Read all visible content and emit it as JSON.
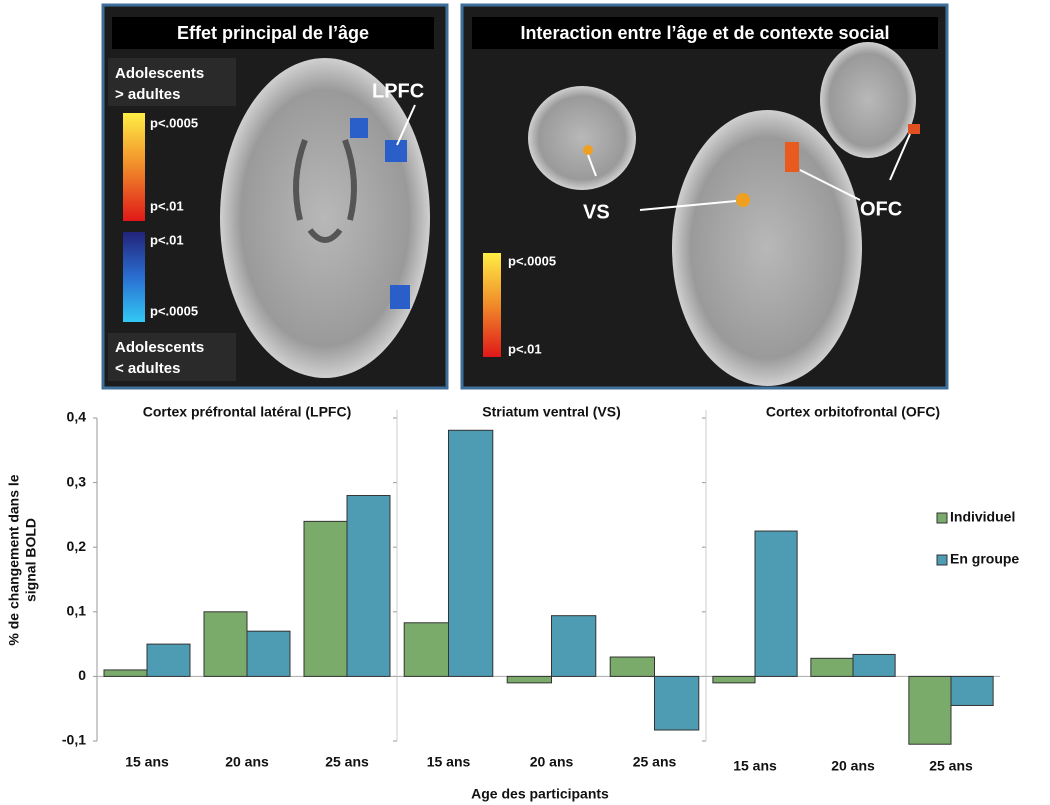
{
  "brain_panels": [
    {
      "title": "Effet principal de l’âge",
      "top_label": [
        "Adolescents",
        "> adultes"
      ],
      "bottom_label": [
        "Adolescents",
        "< adultes"
      ],
      "scale_labels": [
        "p<.0005",
        "p<.01",
        "p<.01",
        "p<.0005"
      ],
      "regions": [
        "LPFC"
      ]
    },
    {
      "title": "Interaction entre l’âge et de contexte social",
      "scale_labels": [
        "p<.0005",
        "p<.01"
      ],
      "regions": [
        "VS",
        "OFC"
      ]
    }
  ],
  "chart_data": {
    "type": "bar",
    "ylabel": [
      "% de changement dans le",
      "signal BOLD"
    ],
    "xlabel": "Age des participants",
    "ylim": [
      -0.1,
      0.4
    ],
    "yticks": [
      {
        "value": 0.4,
        "label": "0,4"
      },
      {
        "value": 0.3,
        "label": "0,3"
      },
      {
        "value": 0.2,
        "label": "0,2"
      },
      {
        "value": 0.1,
        "label": "0,1"
      },
      0,
      {
        "value": -0.1,
        "label": "-0,1"
      }
    ],
    "legend": "right",
    "series": [
      {
        "name": "Individuel",
        "color": "#7aab6a"
      },
      {
        "name": "En groupe",
        "color": "#4e9cb4"
      }
    ],
    "panels": [
      {
        "title": "Cortex préfrontal latéral (LPFC)",
        "categories": [
          "15 ans",
          "20 ans",
          "25 ans"
        ],
        "series": [
          {
            "values": [
              0.01,
              0.1,
              0.24
            ]
          },
          {
            "values": [
              0.05,
              0.07,
              0.28
            ]
          }
        ]
      },
      {
        "title": "Striatum ventral (VS)",
        "categories": [
          "15 ans",
          "20 ans",
          "25 ans"
        ],
        "series": [
          {
            "values": [
              0.083,
              -0.01,
              0.03
            ]
          },
          {
            "values": [
              0.381,
              0.094,
              -0.083
            ]
          }
        ]
      },
      {
        "title": "Cortex orbitofrontal (OFC)",
        "categories": [
          "15 ans",
          "20 ans",
          "25 ans"
        ],
        "series": [
          {
            "values": [
              -0.01,
              0.028,
              -0.105
            ]
          },
          {
            "values": [
              0.225,
              0.034,
              -0.045
            ]
          }
        ]
      }
    ]
  }
}
